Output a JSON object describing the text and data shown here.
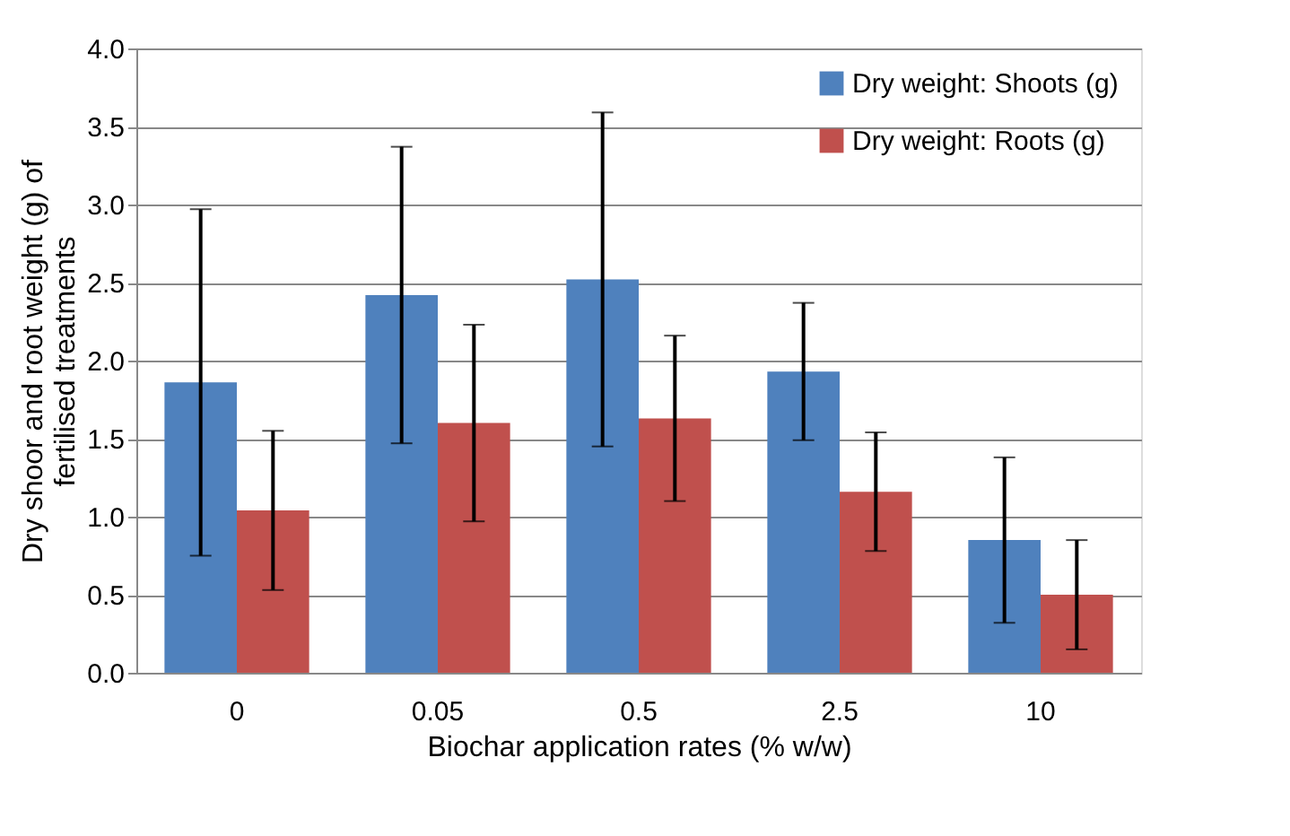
{
  "chart_data": {
    "type": "bar",
    "xlabel": "Biochar application rates (% w/w)",
    "ylabel": "Dry shoor and root weight (g) of\nfertilised treatments",
    "categories": [
      "0",
      "0.05",
      "0.5",
      "2.5",
      "10"
    ],
    "series": [
      {
        "name": "Dry weight: Shoots (g)",
        "color": "#4f81bd",
        "values": [
          1.86,
          2.42,
          2.52,
          1.93,
          0.85
        ],
        "errors": [
          1.11,
          0.95,
          1.07,
          0.44,
          0.53
        ]
      },
      {
        "name": "Dry weight: Roots (g)",
        "color": "#c0504d",
        "values": [
          1.04,
          1.6,
          1.63,
          1.16,
          0.5
        ],
        "errors": [
          0.51,
          0.63,
          0.53,
          0.38,
          0.35
        ]
      }
    ],
    "ylim": [
      0,
      4
    ],
    "yticks": [
      {
        "value": 0,
        "label": "0.0"
      },
      {
        "value": 0.5,
        "label": "0.5"
      },
      {
        "value": 1,
        "label": "1.0"
      },
      {
        "value": 1.5,
        "label": "1.5"
      },
      {
        "value": 2,
        "label": "2.0"
      },
      {
        "value": 2.5,
        "label": "2.5"
      },
      {
        "value": 3,
        "label": "3.0"
      },
      {
        "value": 3.5,
        "label": "3.5"
      },
      {
        "value": 4,
        "label": "4.0"
      }
    ],
    "grid": "y",
    "legend": "top right"
  }
}
